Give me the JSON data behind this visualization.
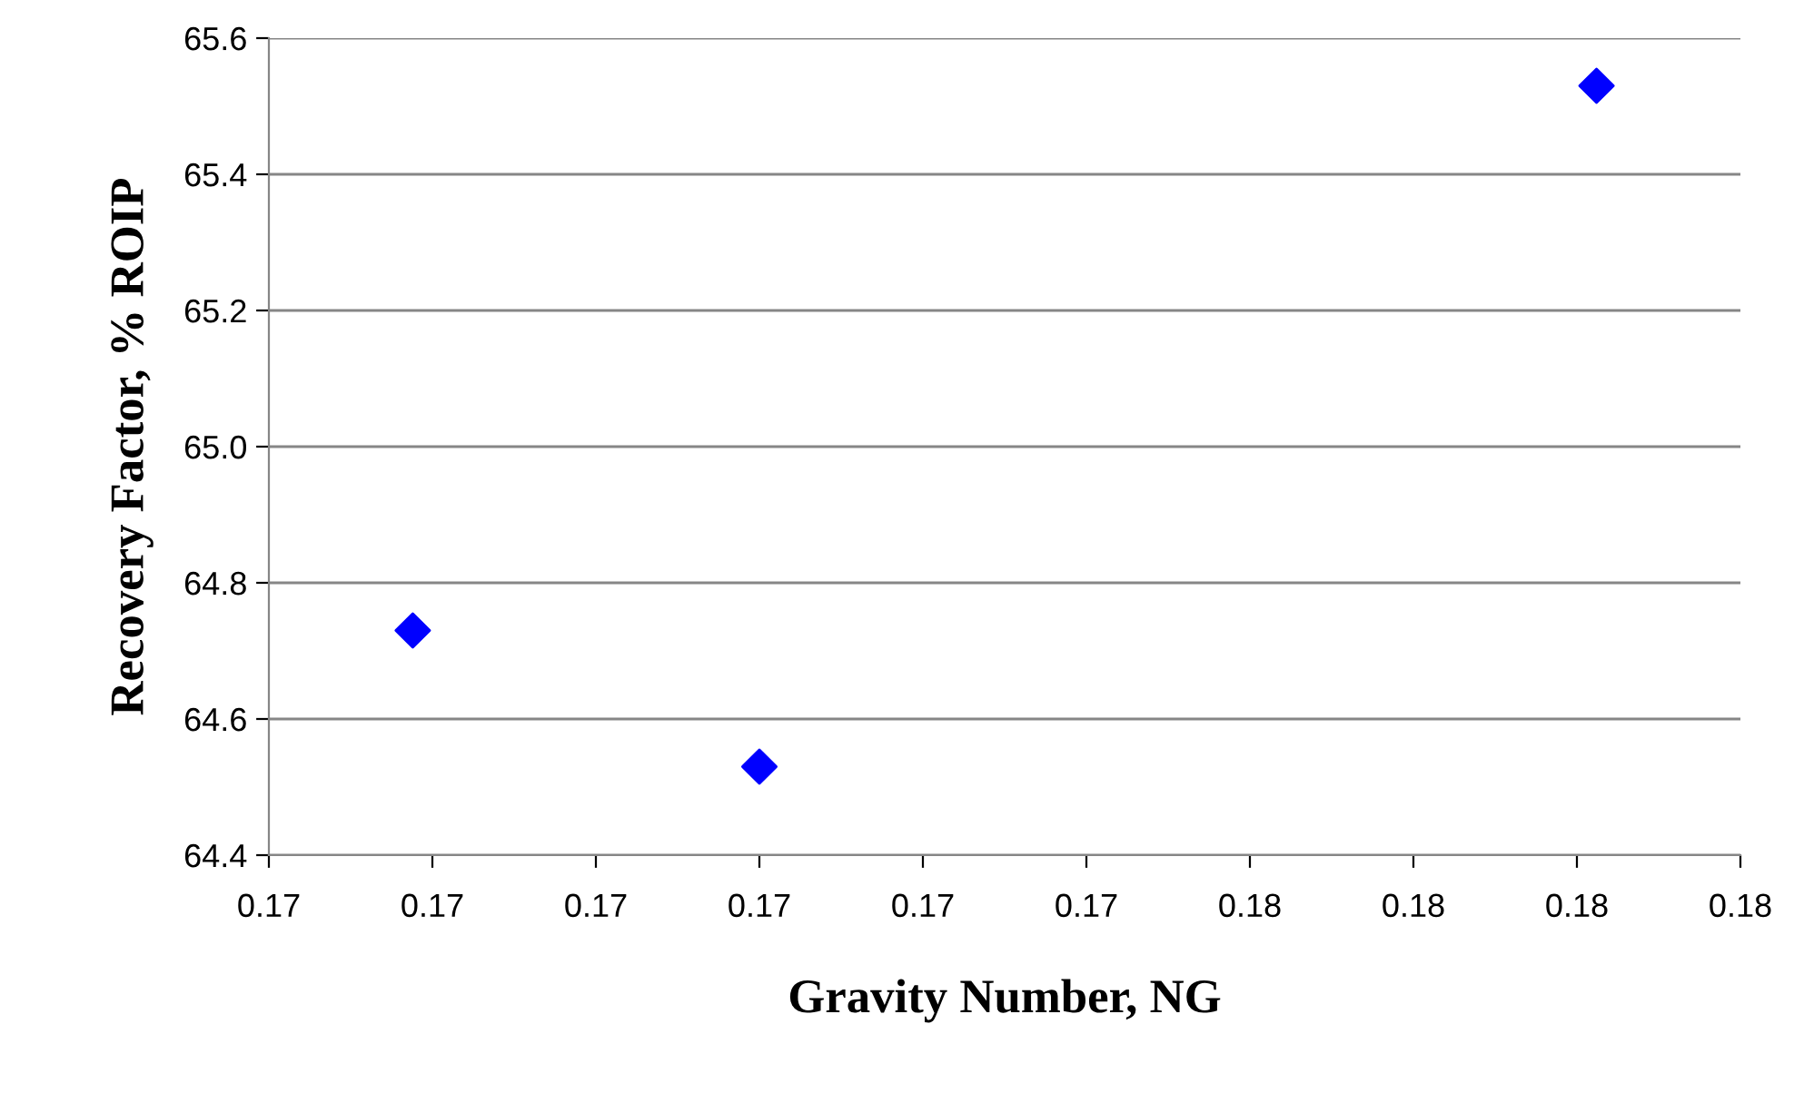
{
  "chart_data": {
    "type": "scatter",
    "xlabel": "Gravity Number, NG",
    "ylabel": "Recovery Factor, % ROIP",
    "x": [
      0.17244,
      0.1735,
      0.17606
    ],
    "series": [
      {
        "color": "#0000ff",
        "values": [
          64.73,
          64.53,
          65.53
        ]
      }
    ],
    "marker": "diamond",
    "grid": "y",
    "legend": false,
    "xlim": [
      0.172,
      0.1765
    ],
    "xticks": [
      {
        "value": 0.172,
        "label": "0.17"
      },
      {
        "value": 0.1725,
        "label": "0.17"
      },
      {
        "value": 0.173,
        "label": "0.17"
      },
      {
        "value": 0.1735,
        "label": "0.17"
      },
      {
        "value": 0.174,
        "label": "0.17"
      },
      {
        "value": 0.1745,
        "label": "0.17"
      },
      {
        "value": 0.175,
        "label": "0.18"
      },
      {
        "value": 0.1755,
        "label": "0.18"
      },
      {
        "value": 0.176,
        "label": "0.18"
      },
      {
        "value": 0.1765,
        "label": "0.18"
      }
    ],
    "ylim": [
      64.4,
      65.6
    ],
    "yticks": [
      {
        "value": 64.4,
        "label": "64.4"
      },
      {
        "value": 64.6,
        "label": "64.6"
      },
      {
        "value": 64.8,
        "label": "64.8"
      },
      {
        "value": 65.0,
        "label": "65.0"
      },
      {
        "value": 65.2,
        "label": "65.2"
      },
      {
        "value": 65.4,
        "label": "65.4"
      },
      {
        "value": 65.6,
        "label": "65.6"
      }
    ]
  }
}
